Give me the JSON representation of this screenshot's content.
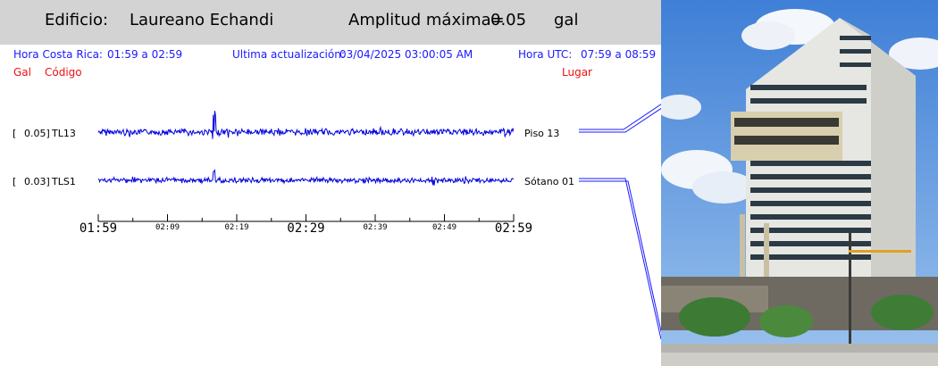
{
  "header": {
    "building_prefix": "Edificio:",
    "building_name": "Laureano Echandi",
    "amplitude_label": "Amplitud máxima=",
    "amplitude_value": "0.05",
    "amplitude_unit": "gal"
  },
  "info": {
    "cr_time_label": "Hora Costa Rica:",
    "cr_time_range": "01:59 a 02:59",
    "update_label": "Ultima actualización:",
    "update_value": "03/04/2025 03:00:05 AM",
    "utc_label": "Hora UTC:",
    "utc_time_range": "07:59 a 08:59"
  },
  "columns": {
    "gal": "Gal",
    "code": "Código",
    "place": "Lugar"
  },
  "channels": [
    {
      "bracket": "[",
      "gal": "0.05]",
      "code": "TL13",
      "place": "Piso 13"
    },
    {
      "bracket": "[",
      "gal": "0.03]",
      "code": "TLS1",
      "place": "Sótano 01"
    }
  ],
  "time_axis": {
    "major_ticks": [
      "01:59",
      "02:29",
      "02:59"
    ],
    "minor_ticks": [
      "02:09",
      "02:19",
      "02:39",
      "02:49"
    ]
  },
  "colors": {
    "trace": "#0000dd",
    "header_bg": "#d3d3d3",
    "label_blue": "#1a1aff",
    "label_red": "#ee1111"
  }
}
